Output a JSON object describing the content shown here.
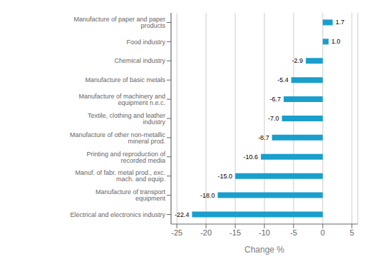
{
  "chart_data": {
    "type": "bar",
    "orientation": "horizontal",
    "categories": [
      "Electrical and electronics industry",
      "Manufacture of transport equipment",
      "Manuf. of fabr. metal prod., exc. mach. and equip.",
      "Printing and reproduction of recorded media",
      "Manufacture of other non-metallic mineral prod.",
      "Textile, clothing and leather industry",
      "Manufacture of machinery and equipment n.e.c.",
      "Manufacture of basic metals",
      "Chemical industry",
      "Food industry",
      "Manufacture of paper and paper products"
    ],
    "values": [
      -22.4,
      -18.0,
      -15.0,
      -10.6,
      -8.7,
      -7.0,
      -6.7,
      -5.4,
      -2.9,
      1.0,
      1.7
    ],
    "value_labels": [
      "-22.4",
      "-18.0",
      "-15.0",
      "-10.6",
      "-8.7",
      "-7.0",
      "-6.7",
      "-5.4",
      "-2.9",
      "1.0",
      "1.7"
    ],
    "color": "#1a9fcd",
    "xlabel": "Change %",
    "xlim": [
      -26,
      6
    ],
    "xticks": [
      -25,
      -20,
      -15,
      -10,
      -5,
      0,
      5
    ],
    "grid": true,
    "data_labels": true
  }
}
